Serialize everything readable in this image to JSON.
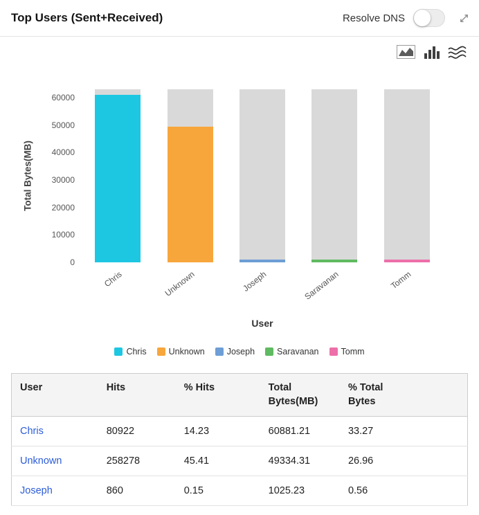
{
  "header": {
    "title": "Top Users (Sent+Received)",
    "resolve_dns_label": "Resolve DNS",
    "resolve_dns_on": false
  },
  "chart_toolbar": {
    "icons": [
      "area-chart-icon",
      "bar-chart-icon",
      "stream-chart-icon"
    ]
  },
  "chart_data": {
    "type": "bar",
    "categories": [
      "Chris",
      "Unknown",
      "Joseph",
      "Saravanan",
      "Tomm"
    ],
    "values": [
      60881.21,
      49334.31,
      1025.23,
      1000,
      900
    ],
    "colors": [
      "#1dc7e2",
      "#f7a63c",
      "#6d9ed6",
      "#5fba61",
      "#ed6fa9"
    ],
    "track_color": "#d9d9d9",
    "title": "",
    "xlabel": "User",
    "ylabel": "Total Bytes(MB)",
    "ylim": [
      0,
      63000
    ],
    "yticks": [
      0,
      10000,
      20000,
      30000,
      40000,
      50000,
      60000
    ],
    "grid": false,
    "legend_position": "bottom",
    "legend": [
      "Chris",
      "Unknown",
      "Joseph",
      "Saravanan",
      "Tomm"
    ]
  },
  "table": {
    "columns": [
      "User",
      "Hits",
      "% Hits",
      "Total Bytes(MB)",
      "% Total Bytes"
    ],
    "rows": [
      [
        "Chris",
        "80922",
        "14.23",
        "60881.21",
        "33.27"
      ],
      [
        "Unknown",
        "258278",
        "45.41",
        "49334.31",
        "26.96"
      ],
      [
        "Joseph",
        "860",
        "0.15",
        "1025.23",
        "0.56"
      ]
    ],
    "link_color": "#2b5cd9"
  }
}
